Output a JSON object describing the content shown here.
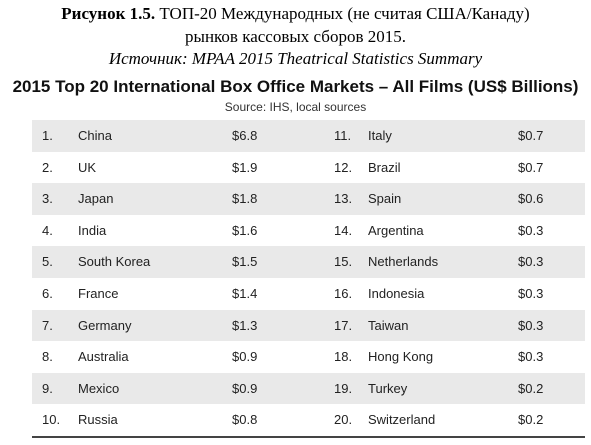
{
  "caption": {
    "label": "Рисунок 1.5.",
    "text": "ТОП-20 Международных (не считая США/Канаду)",
    "text2": "рынков кассовых сборов 2015.",
    "source": "Источник: MPAA 2015 Theatrical Statistics Summary"
  },
  "header": {
    "title": "2015 Top 20 International Box Office Markets – All Films (US$ Billions)",
    "source": "Source: IHS, local sources"
  },
  "table": {
    "rows": [
      [
        "1.",
        "China",
        "$6.8",
        "11.",
        "Italy",
        "$0.7"
      ],
      [
        "2.",
        "UK",
        "$1.9",
        "12.",
        "Brazil",
        "$0.7"
      ],
      [
        "3.",
        "Japan",
        "$1.8",
        "13.",
        "Spain",
        "$0.6"
      ],
      [
        "4.",
        "India",
        "$1.6",
        "14.",
        "Argentina",
        "$0.3"
      ],
      [
        "5.",
        "South Korea",
        "$1.5",
        "15.",
        "Netherlands",
        "$0.3"
      ],
      [
        "6.",
        "France",
        "$1.4",
        "16.",
        "Indonesia",
        "$0.3"
      ],
      [
        "7.",
        "Germany",
        "$1.3",
        "17.",
        "Taiwan",
        "$0.3"
      ],
      [
        "8.",
        "Australia",
        "$0.9",
        "18.",
        "Hong Kong",
        "$0.3"
      ],
      [
        "9.",
        "Mexico",
        "$0.9",
        "19.",
        "Turkey",
        "$0.2"
      ],
      [
        "10.",
        "Russia",
        "$0.8",
        "20.",
        "Switzerland",
        "$0.2"
      ]
    ]
  }
}
